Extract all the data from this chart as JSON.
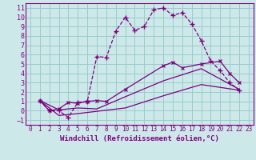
{
  "title": "",
  "xlabel": "Windchill (Refroidissement éolien,°C)",
  "ylabel": "",
  "background_color": "#cce8e8",
  "grid_color": "#99cccc",
  "line_color": "#800080",
  "xlim": [
    -0.5,
    23.5
  ],
  "ylim": [
    -1.5,
    11.5
  ],
  "xticks": [
    0,
    1,
    2,
    3,
    4,
    5,
    6,
    7,
    8,
    9,
    10,
    11,
    12,
    13,
    14,
    15,
    16,
    17,
    18,
    19,
    20,
    21,
    22,
    23
  ],
  "yticks": [
    -1,
    0,
    1,
    2,
    3,
    4,
    5,
    6,
    7,
    8,
    9,
    10,
    11
  ],
  "curve1_x": [
    1,
    2,
    3,
    4,
    5,
    6,
    7,
    8,
    9,
    10,
    11,
    12,
    13,
    14,
    15,
    16,
    17,
    18,
    19,
    20,
    21,
    22
  ],
  "curve1_y": [
    1.1,
    0.0,
    0.0,
    -0.7,
    0.9,
    1.0,
    5.8,
    5.7,
    8.5,
    10.0,
    8.6,
    9.0,
    10.8,
    11.0,
    10.2,
    10.5,
    9.3,
    7.5,
    5.3,
    4.3,
    3.0,
    2.2
  ],
  "curve2_x": [
    1,
    2,
    3,
    4,
    5,
    6,
    7,
    8,
    10,
    14,
    15,
    16,
    18,
    20,
    21,
    22
  ],
  "curve2_y": [
    1.1,
    0.0,
    0.2,
    0.9,
    0.8,
    1.0,
    1.1,
    1.0,
    2.3,
    4.8,
    5.2,
    4.6,
    5.0,
    5.3,
    4.0,
    3.0
  ],
  "curve3_x": [
    1,
    3,
    5,
    7,
    10,
    14,
    18,
    22
  ],
  "curve3_y": [
    1.1,
    0.1,
    0.3,
    0.2,
    1.5,
    3.2,
    4.5,
    2.3
  ],
  "curve4_x": [
    1,
    3,
    5,
    10,
    14,
    18,
    22
  ],
  "curve4_y": [
    1.1,
    -0.5,
    -0.3,
    0.3,
    1.6,
    2.8,
    2.2
  ],
  "fontsize_xlabel": 6.5,
  "fontsize_ytick": 6,
  "fontsize_xtick": 5.5
}
